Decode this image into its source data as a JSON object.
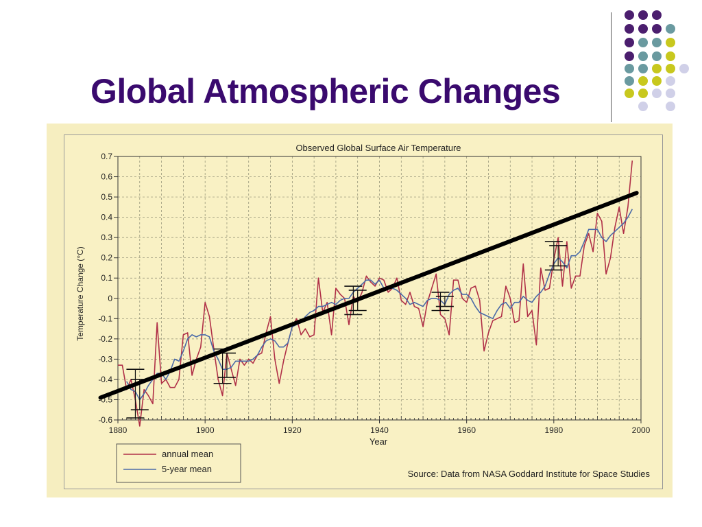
{
  "slide_title": "Global Atmospheric Changes",
  "decoration": {
    "icon": "dot-grid-icon",
    "colors": [
      "#4b1e6e",
      "#6a9aa0",
      "#c8c81e",
      "#d0d0e8"
    ]
  },
  "chart_data": {
    "type": "line",
    "title": "Observed Global Surface Air Temperature",
    "xlabel": "Year",
    "ylabel": "Temperature Change (°C)",
    "xlim": [
      1880,
      2000
    ],
    "ylim": [
      -0.6,
      0.7
    ],
    "x_ticks": [
      "1880",
      "1900",
      "1920",
      "1940",
      "1960",
      "1980",
      "2000"
    ],
    "y_ticks": [
      "0.7",
      "0.6",
      "0.5",
      "0.4",
      "0.3",
      "0.2",
      "0.1",
      "0",
      "-0.1",
      "-0.2",
      "-0.3",
      "-0.4",
      "-0.5",
      "-0.6"
    ],
    "grid": true,
    "legend_position": "bottom-left",
    "source": "Source: Data from NASA Goddard Institute for Space Studies",
    "series": [
      {
        "name": "annual mean",
        "color": "#b03048",
        "x": [
          1880,
          1881,
          1882,
          1883,
          1884,
          1885,
          1886,
          1887,
          1888,
          1889,
          1890,
          1891,
          1892,
          1893,
          1894,
          1895,
          1896,
          1897,
          1898,
          1899,
          1900,
          1901,
          1902,
          1903,
          1904,
          1905,
          1906,
          1907,
          1908,
          1909,
          1910,
          1911,
          1912,
          1913,
          1914,
          1915,
          1916,
          1917,
          1918,
          1919,
          1920,
          1921,
          1922,
          1923,
          1924,
          1925,
          1926,
          1927,
          1928,
          1929,
          1930,
          1931,
          1932,
          1933,
          1934,
          1935,
          1936,
          1937,
          1938,
          1939,
          1940,
          1941,
          1942,
          1943,
          1944,
          1945,
          1946,
          1947,
          1948,
          1949,
          1950,
          1951,
          1952,
          1953,
          1954,
          1955,
          1956,
          1957,
          1958,
          1959,
          1960,
          1961,
          1962,
          1963,
          1964,
          1965,
          1966,
          1967,
          1968,
          1969,
          1970,
          1971,
          1972,
          1973,
          1974,
          1975,
          1976,
          1977,
          1978,
          1979,
          1980,
          1981,
          1982,
          1983,
          1984,
          1985,
          1986,
          1987,
          1988,
          1989,
          1990,
          1991,
          1992,
          1993,
          1994,
          1995,
          1996,
          1997,
          1998
        ],
        "values": [
          -0.33,
          -0.33,
          -0.45,
          -0.4,
          -0.5,
          -0.63,
          -0.45,
          -0.48,
          -0.52,
          -0.12,
          -0.42,
          -0.4,
          -0.44,
          -0.44,
          -0.4,
          -0.18,
          -0.17,
          -0.38,
          -0.3,
          -0.24,
          -0.02,
          -0.09,
          -0.25,
          -0.4,
          -0.48,
          -0.27,
          -0.35,
          -0.43,
          -0.3,
          -0.33,
          -0.3,
          -0.32,
          -0.28,
          -0.27,
          -0.17,
          -0.09,
          -0.3,
          -0.42,
          -0.31,
          -0.22,
          -0.14,
          -0.1,
          -0.18,
          -0.15,
          -0.19,
          -0.18,
          0.1,
          -0.07,
          -0.02,
          -0.18,
          0.05,
          0.02,
          0.0,
          -0.13,
          0.01,
          -0.02,
          0.03,
          0.11,
          0.08,
          0.06,
          0.1,
          0.09,
          0.03,
          0.05,
          0.1,
          -0.01,
          -0.03,
          0.03,
          -0.04,
          -0.05,
          -0.14,
          -0.02,
          0.05,
          0.12,
          -0.08,
          -0.1,
          -0.18,
          0.09,
          0.09,
          0.0,
          -0.02,
          0.05,
          0.06,
          -0.01,
          -0.26,
          -0.17,
          -0.11,
          -0.1,
          -0.09,
          0.06,
          0.0,
          -0.12,
          -0.11,
          0.17,
          -0.09,
          -0.06,
          -0.23,
          0.15,
          0.04,
          0.05,
          0.19,
          0.3,
          0.06,
          0.28,
          0.05,
          0.11,
          0.11,
          0.26,
          0.32,
          0.23,
          0.42,
          0.38,
          0.12,
          0.2,
          0.35,
          0.45,
          0.32,
          0.45,
          0.68
        ]
      },
      {
        "name": "5-year mean",
        "color": "#4a6aa8",
        "x": [
          1882,
          1883,
          1884,
          1885,
          1886,
          1887,
          1888,
          1889,
          1890,
          1891,
          1892,
          1893,
          1894,
          1895,
          1896,
          1897,
          1898,
          1899,
          1900,
          1901,
          1902,
          1903,
          1904,
          1905,
          1906,
          1907,
          1908,
          1909,
          1910,
          1911,
          1912,
          1913,
          1914,
          1915,
          1916,
          1917,
          1918,
          1919,
          1920,
          1921,
          1922,
          1923,
          1924,
          1925,
          1926,
          1927,
          1928,
          1929,
          1930,
          1931,
          1932,
          1933,
          1934,
          1935,
          1936,
          1937,
          1938,
          1939,
          1940,
          1941,
          1942,
          1943,
          1944,
          1945,
          1946,
          1947,
          1948,
          1949,
          1950,
          1951,
          1952,
          1953,
          1954,
          1955,
          1956,
          1957,
          1958,
          1959,
          1960,
          1961,
          1962,
          1963,
          1964,
          1965,
          1966,
          1967,
          1968,
          1969,
          1970,
          1971,
          1972,
          1973,
          1974,
          1975,
          1976,
          1977,
          1978,
          1979,
          1980,
          1981,
          1982,
          1983,
          1984,
          1985,
          1986,
          1987,
          1988,
          1989,
          1990,
          1991,
          1992,
          1993,
          1994,
          1995,
          1996,
          1997,
          1998
        ],
        "values": [
          -0.41,
          -0.45,
          -0.46,
          -0.5,
          -0.47,
          -0.43,
          -0.4,
          -0.37,
          -0.37,
          -0.4,
          -0.36,
          -0.3,
          -0.31,
          -0.26,
          -0.2,
          -0.18,
          -0.19,
          -0.18,
          -0.18,
          -0.19,
          -0.26,
          -0.3,
          -0.35,
          -0.35,
          -0.34,
          -0.31,
          -0.31,
          -0.31,
          -0.31,
          -0.3,
          -0.28,
          -0.24,
          -0.21,
          -0.2,
          -0.21,
          -0.24,
          -0.24,
          -0.22,
          -0.14,
          -0.13,
          -0.12,
          -0.09,
          -0.07,
          -0.06,
          -0.04,
          -0.04,
          -0.03,
          -0.02,
          -0.03,
          -0.01,
          0.0,
          0.0,
          0.03,
          0.05,
          0.07,
          0.09,
          0.09,
          0.07,
          0.09,
          0.05,
          0.05,
          0.05,
          0.04,
          0.02,
          0.0,
          -0.03,
          -0.02,
          -0.03,
          -0.04,
          -0.01,
          0.0,
          0.0,
          -0.01,
          -0.03,
          0.02,
          0.04,
          0.05,
          0.02,
          0.02,
          0.0,
          -0.04,
          -0.07,
          -0.08,
          -0.09,
          -0.1,
          -0.06,
          -0.03,
          -0.02,
          -0.05,
          -0.02,
          -0.02,
          0.01,
          -0.01,
          -0.02,
          0.01,
          0.03,
          0.06,
          0.12,
          0.17,
          0.2,
          0.18,
          0.15,
          0.21,
          0.21,
          0.23,
          0.28,
          0.34,
          0.34,
          0.34,
          0.3,
          0.28,
          0.31,
          0.33,
          0.35,
          0.37,
          0.4,
          0.44
        ]
      }
    ],
    "error_bars": [
      {
        "x": 1884,
        "low": -0.59,
        "high": -0.35
      },
      {
        "x": 1885,
        "low": -0.55,
        "high": -0.4
      },
      {
        "x": 1904,
        "low": -0.42,
        "high": -0.25
      },
      {
        "x": 1905,
        "low": -0.39,
        "high": -0.27
      },
      {
        "x": 1934,
        "low": -0.08,
        "high": 0.06
      },
      {
        "x": 1935,
        "low": -0.06,
        "high": 0.04
      },
      {
        "x": 1954,
        "low": -0.06,
        "high": 0.03
      },
      {
        "x": 1955,
        "low": -0.04,
        "high": 0.01
      },
      {
        "x": 1980,
        "low": 0.14,
        "high": 0.28
      },
      {
        "x": 1981,
        "low": 0.16,
        "high": 0.26
      }
    ],
    "trend_line": {
      "x": [
        1876,
        1999
      ],
      "values": [
        -0.49,
        0.52
      ],
      "color": "#000000"
    }
  }
}
